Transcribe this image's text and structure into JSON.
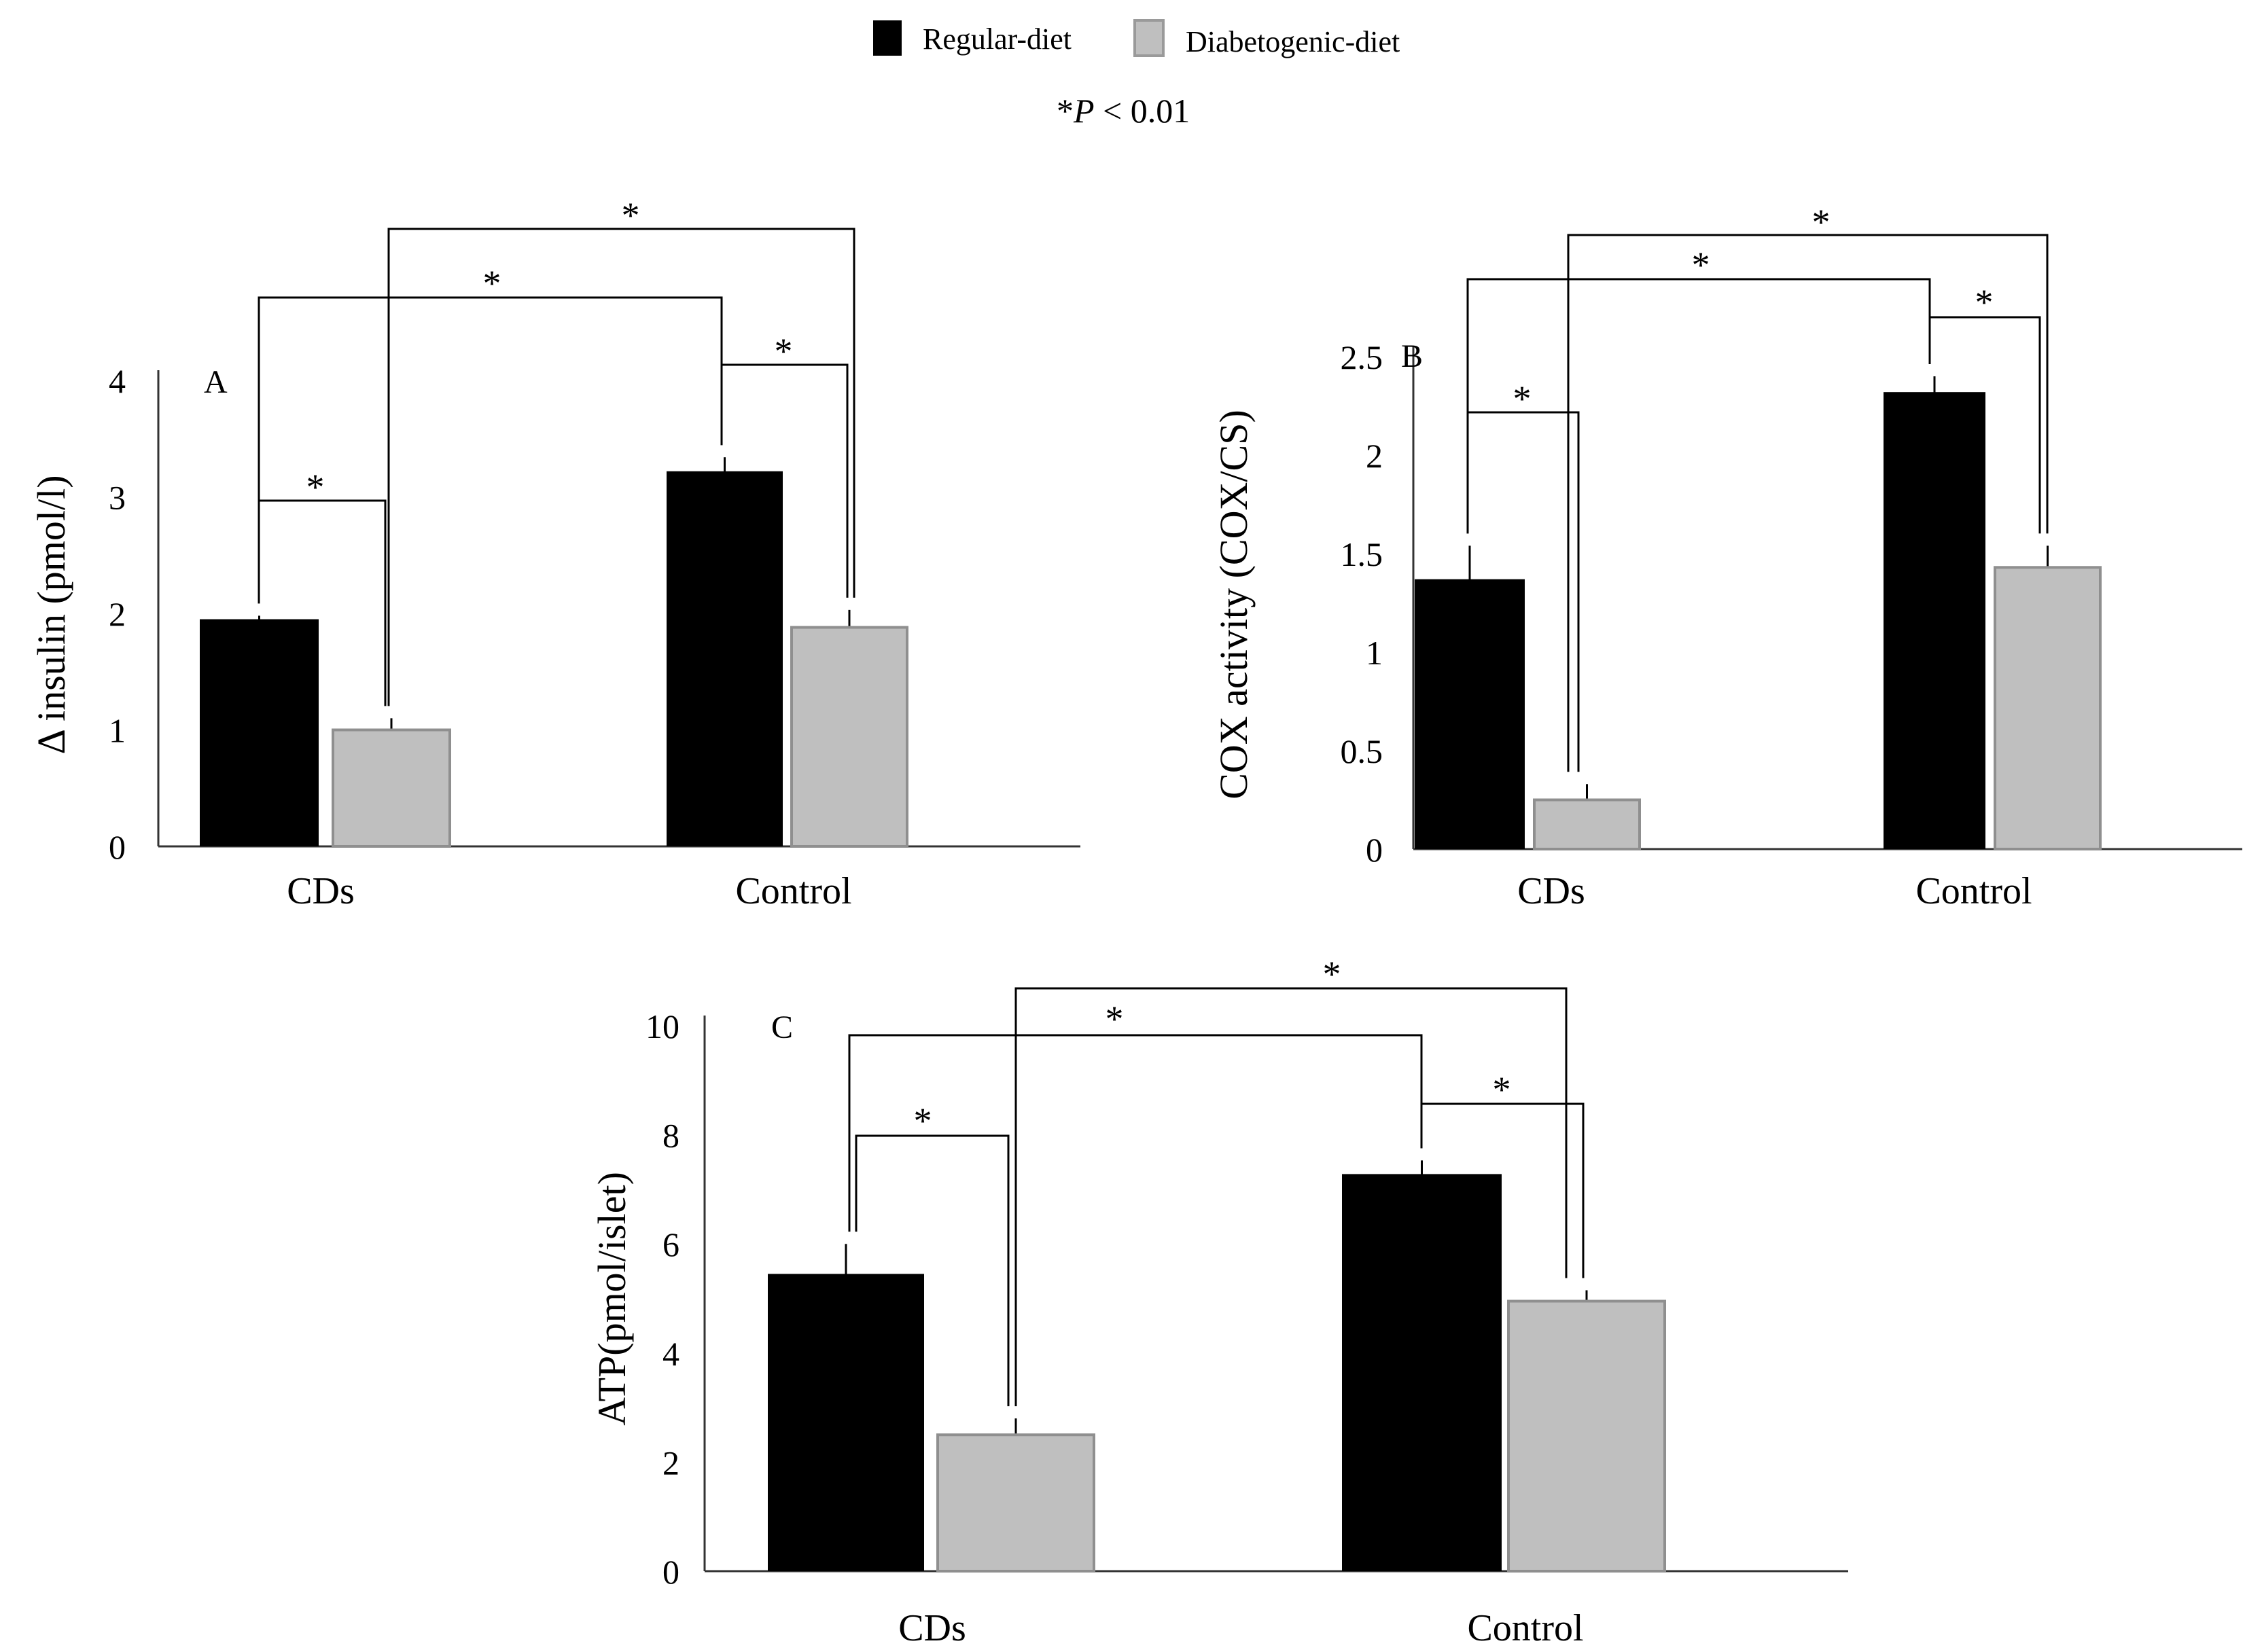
{
  "legend": {
    "items": [
      {
        "label": "Regular-diet",
        "color": "#000000"
      },
      {
        "label": "Diabetogenic-diet",
        "color": "#bfbfbf"
      }
    ],
    "note_prefix": "*",
    "note_p": "P",
    "note_suffix": " < 0.01"
  },
  "chart_data": [
    {
      "type": "bar",
      "panel": "A",
      "ylabel": "Δ insulin (pmol/l)",
      "categories": [
        "CDs",
        "Control"
      ],
      "ylim": [
        0,
        4
      ],
      "yticks": [
        "0",
        "1",
        "2",
        "3",
        "4"
      ],
      "series": [
        {
          "name": "Regular-diet",
          "color": "#000000",
          "values": [
            1.95,
            3.22
          ],
          "errors": [
            0.03,
            0.12
          ]
        },
        {
          "name": "Diabetogenic-diet",
          "color": "#bfbfbf",
          "values": [
            1.0,
            1.88
          ],
          "errors": [
            0.1,
            0.15
          ]
        }
      ],
      "significance": [
        {
          "from": [
            0,
            0
          ],
          "to": [
            0,
            1
          ],
          "label": "*"
        },
        {
          "from": [
            1,
            0
          ],
          "to": [
            1,
            1
          ],
          "label": "*"
        },
        {
          "from": [
            0,
            0
          ],
          "to": [
            1,
            0
          ],
          "label": "*"
        },
        {
          "from": [
            0,
            1
          ],
          "to": [
            1,
            1
          ],
          "label": "*"
        }
      ]
    },
    {
      "type": "bar",
      "panel": "B",
      "ylabel": "COX  activity  (COX/CS)",
      "categories": [
        "CDs",
        "Control"
      ],
      "ylim": [
        0,
        2.5
      ],
      "yticks": [
        "0",
        "0.5",
        "1",
        "1.5",
        "2",
        "2.5"
      ],
      "series": [
        {
          "name": "Regular-diet",
          "color": "#000000",
          "values": [
            1.37,
            2.32
          ],
          "errors": [
            0.17,
            0.08
          ]
        },
        {
          "name": "Diabetogenic-diet",
          "color": "#bfbfbf",
          "values": [
            0.25,
            1.43
          ],
          "errors": [
            0.08,
            0.11
          ]
        }
      ],
      "significance": [
        {
          "from": [
            0,
            0
          ],
          "to": [
            0,
            1
          ],
          "label": "*"
        },
        {
          "from": [
            1,
            0
          ],
          "to": [
            1,
            1
          ],
          "label": "*"
        },
        {
          "from": [
            0,
            0
          ],
          "to": [
            1,
            0
          ],
          "label": "*"
        },
        {
          "from": [
            0,
            1
          ],
          "to": [
            1,
            1
          ],
          "label": "*"
        }
      ]
    },
    {
      "type": "bar",
      "panel": "C",
      "ylabel": "ATP(pmol/islet)",
      "categories": [
        "CDs",
        "Control"
      ],
      "ylim": [
        0,
        10
      ],
      "yticks": [
        "0",
        "2",
        "4",
        "6",
        "8",
        "10"
      ],
      "series": [
        {
          "name": "Regular-diet",
          "color": "#000000",
          "values": [
            5.45,
            7.28
          ],
          "errors": [
            0.55,
            0.25
          ]
        },
        {
          "name": "Diabetogenic-diet",
          "color": "#bfbfbf",
          "values": [
            2.5,
            4.95
          ],
          "errors": [
            0.3,
            0.2
          ]
        }
      ],
      "significance": [
        {
          "from": [
            0,
            0
          ],
          "to": [
            0,
            1
          ],
          "label": "*"
        },
        {
          "from": [
            1,
            0
          ],
          "to": [
            1,
            1
          ],
          "label": "*"
        },
        {
          "from": [
            0,
            0
          ],
          "to": [
            1,
            0
          ],
          "label": "*"
        },
        {
          "from": [
            0,
            1
          ],
          "to": [
            1,
            1
          ],
          "label": "*"
        }
      ]
    }
  ]
}
